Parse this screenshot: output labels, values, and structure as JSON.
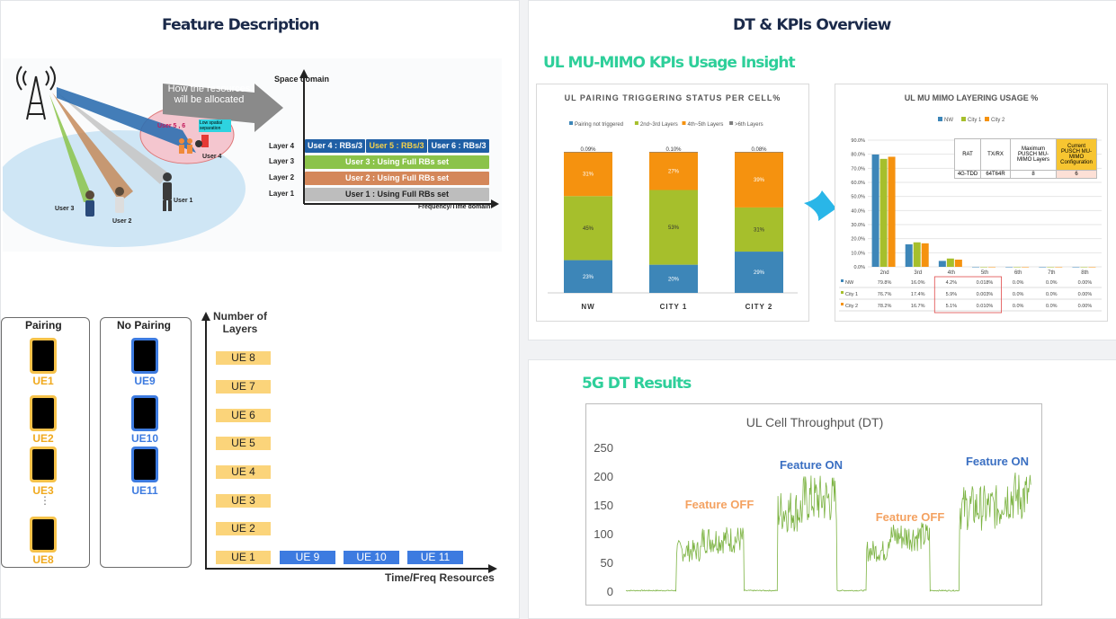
{
  "left": {
    "title": "Feature Description",
    "top_diagram": {
      "callout": "How the resources will be allocated",
      "group_label": "User 5 , 6",
      "separation_label": "Low spatial separation",
      "user4": "User 4",
      "user1": "User 1",
      "user2": "User 2",
      "user3": "User 3",
      "y_axis": "Space domain",
      "x_axis": "Frequency/Time domain",
      "layers": [
        {
          "name": "Layer 4"
        },
        {
          "name": "Layer 3",
          "bar": "User 3 : Using Full RBs set"
        },
        {
          "name": "Layer 2",
          "bar": "User 2 : Using Full RBs set"
        },
        {
          "name": "Layer 1",
          "bar": "User 1 : Using Full RBs set"
        }
      ],
      "layer4_bars": [
        "User 4 : RBs/3",
        "User 5 : RBs/3",
        "User 6 : RBs/3"
      ]
    },
    "bottom_diagram": {
      "pairing_title": "Pairing",
      "no_pairing_title": "No Pairing",
      "pairing_ues": [
        "UE1",
        "UE2",
        "UE3",
        "UE8"
      ],
      "ellipsis": "⋮",
      "no_pairing_ues": [
        "UE9",
        "UE10",
        "UE11"
      ],
      "y_axis": "Number of Layers",
      "x_axis": "Time/Freq Resources",
      "stack": [
        "UE 8",
        "UE 7",
        "UE 6",
        "UE 5",
        "UE 4",
        "UE 3",
        "UE 2",
        "UE 1"
      ],
      "row": [
        "UE 9",
        "UE 10",
        "UE 11"
      ]
    }
  },
  "right": {
    "title": "DT & KPIs Overview",
    "section1_title": "UL MU-MIMO KPIs Usage Insight",
    "section2_title": "5G DT Results",
    "arrow_color": "#29b6e8"
  },
  "chart_data": [
    {
      "type": "bar",
      "stacked": true,
      "title": "UL PAIRING TRIGGERING STATUS PER CELL%",
      "categories": [
        "NW",
        "CITY 1",
        "CITY 2"
      ],
      "legend_position": "top",
      "series": [
        {
          "name": "Pairing not triggered",
          "color": "#3d86b8",
          "values": [
            23,
            20,
            29
          ],
          "labels": [
            "23%",
            "20%",
            "29%"
          ]
        },
        {
          "name": "2nd~3rd Layers",
          "color": "#a6bf2c",
          "values": [
            45,
            53,
            31
          ],
          "labels": [
            "45%",
            "53%",
            "31%"
          ]
        },
        {
          "name": "4th~5th Layers",
          "color": "#f5920f",
          "values": [
            31,
            27,
            39
          ],
          "labels": [
            "31%",
            "27%",
            "39%"
          ]
        },
        {
          "name": ">6th Layers",
          "color": "#7d7d7d",
          "values": [
            0.09,
            0.1,
            0.08
          ],
          "labels": [
            "0.09%",
            "0.10%",
            "0.08%"
          ]
        }
      ]
    },
    {
      "type": "bar",
      "title": "UL MU MIMO LAYERING USAGE %",
      "categories": [
        "2nd",
        "3rd",
        "4th",
        "5th",
        "6th",
        "7th",
        "8th"
      ],
      "ylim": [
        0,
        90
      ],
      "yticks": [
        "0.0%",
        "10.0%",
        "20.0%",
        "30.0%",
        "40.0%",
        "50.0%",
        "60.0%",
        "70.0%",
        "80.0%",
        "90.0%"
      ],
      "legend_position": "top",
      "series": [
        {
          "name": "NW",
          "color": "#3d86b8",
          "values": [
            79.8,
            16.0,
            4.2,
            0.018,
            0.0,
            0.0,
            0.0
          ],
          "labels": [
            "79.8%",
            "16.0%",
            "4.2%",
            "0.018%",
            "0.0%",
            "0.0%",
            "0.00%"
          ]
        },
        {
          "name": "City 1",
          "color": "#a6bf2c",
          "values": [
            76.7,
            17.4,
            5.9,
            0.003,
            0.0,
            0.0,
            0.0
          ],
          "labels": [
            "76.7%",
            "17.4%",
            "5.9%",
            "0.003%",
            "0.0%",
            "0.0%",
            "0.00%"
          ]
        },
        {
          "name": "City 2",
          "color": "#f5920f",
          "values": [
            78.2,
            16.7,
            5.1,
            0.01,
            0.0,
            0.0,
            0.0
          ],
          "labels": [
            "78.2%",
            "16.7%",
            "5.1%",
            "0.010%",
            "0.0%",
            "0.0%",
            "0.00%"
          ]
        }
      ],
      "config_table": {
        "headers": [
          "RAT",
          "TX/RX",
          "Maximum PUSCH MU-MIMO Layers",
          "Current PUSCH MU-MIMO Configuration"
        ],
        "row": [
          "4G-TDD",
          "64T64R",
          "8",
          "6"
        ]
      }
    },
    {
      "type": "line",
      "title": "UL Cell Throughput (DT)",
      "ylim": [
        0,
        250
      ],
      "yticks": [
        "0",
        "50",
        "100",
        "150",
        "200",
        "250"
      ],
      "series": [
        {
          "name": "",
          "color": "#7cb342"
        }
      ],
      "segments": [
        {
          "state": "off",
          "level": 0,
          "n": 12
        },
        {
          "state": "on",
          "level": 70,
          "n": 6
        },
        {
          "state": "on",
          "level": 90,
          "n": 10
        },
        {
          "state": "off",
          "level": 0,
          "n": 8
        },
        {
          "state": "on",
          "level": 140,
          "n": 6
        },
        {
          "state": "on",
          "level": 160,
          "n": 8
        },
        {
          "state": "off",
          "level": 0,
          "n": 7
        },
        {
          "state": "on",
          "level": 70,
          "n": 5
        },
        {
          "state": "on",
          "level": 95,
          "n": 10
        },
        {
          "state": "off",
          "level": 0,
          "n": 7
        },
        {
          "state": "on",
          "level": 145,
          "n": 10
        },
        {
          "state": "on",
          "level": 165,
          "n": 7
        }
      ],
      "annotations": [
        {
          "text": "Feature OFF",
          "color": "#f4a261"
        },
        {
          "text": "Feature ON",
          "color": "#3a6fc2"
        },
        {
          "text": "Feature OFF",
          "color": "#f4a261"
        },
        {
          "text": "Feature ON",
          "color": "#3a6fc2"
        }
      ]
    }
  ]
}
